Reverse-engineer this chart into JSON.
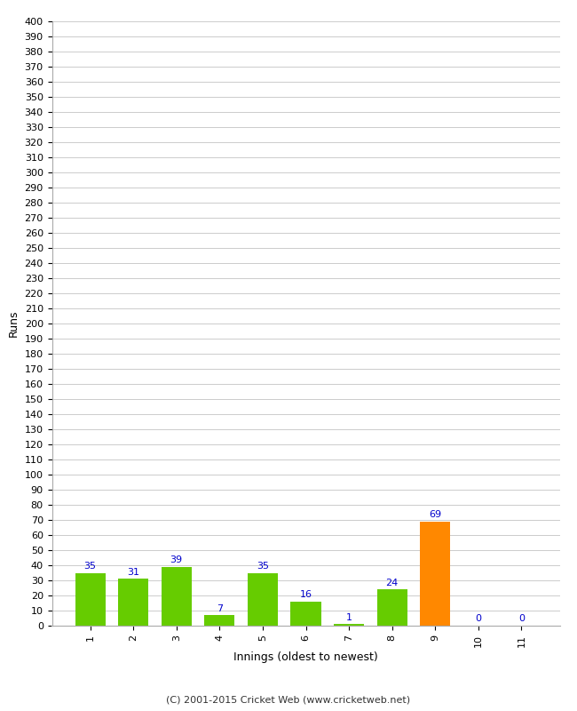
{
  "categories": [
    "1",
    "2",
    "3",
    "4",
    "5",
    "6",
    "7",
    "8",
    "9",
    "10",
    "11"
  ],
  "values": [
    35,
    31,
    39,
    7,
    35,
    16,
    1,
    24,
    69,
    0,
    0
  ],
  "bar_colors": [
    "#66cc00",
    "#66cc00",
    "#66cc00",
    "#66cc00",
    "#66cc00",
    "#66cc00",
    "#66cc00",
    "#66cc00",
    "#ff8800",
    "#66cc00",
    "#66cc00"
  ],
  "xlabel": "Innings (oldest to newest)",
  "ylabel": "Runs",
  "ylim": [
    0,
    400
  ],
  "ytick_step": 10,
  "background_color": "#ffffff",
  "grid_color": "#cccccc",
  "label_color": "#0000cc",
  "footer": "(C) 2001-2015 Cricket Web (www.cricketweb.net)",
  "bar_width": 0.7,
  "tick_fontsize": 8,
  "label_fontsize": 9,
  "annotation_fontsize": 8
}
